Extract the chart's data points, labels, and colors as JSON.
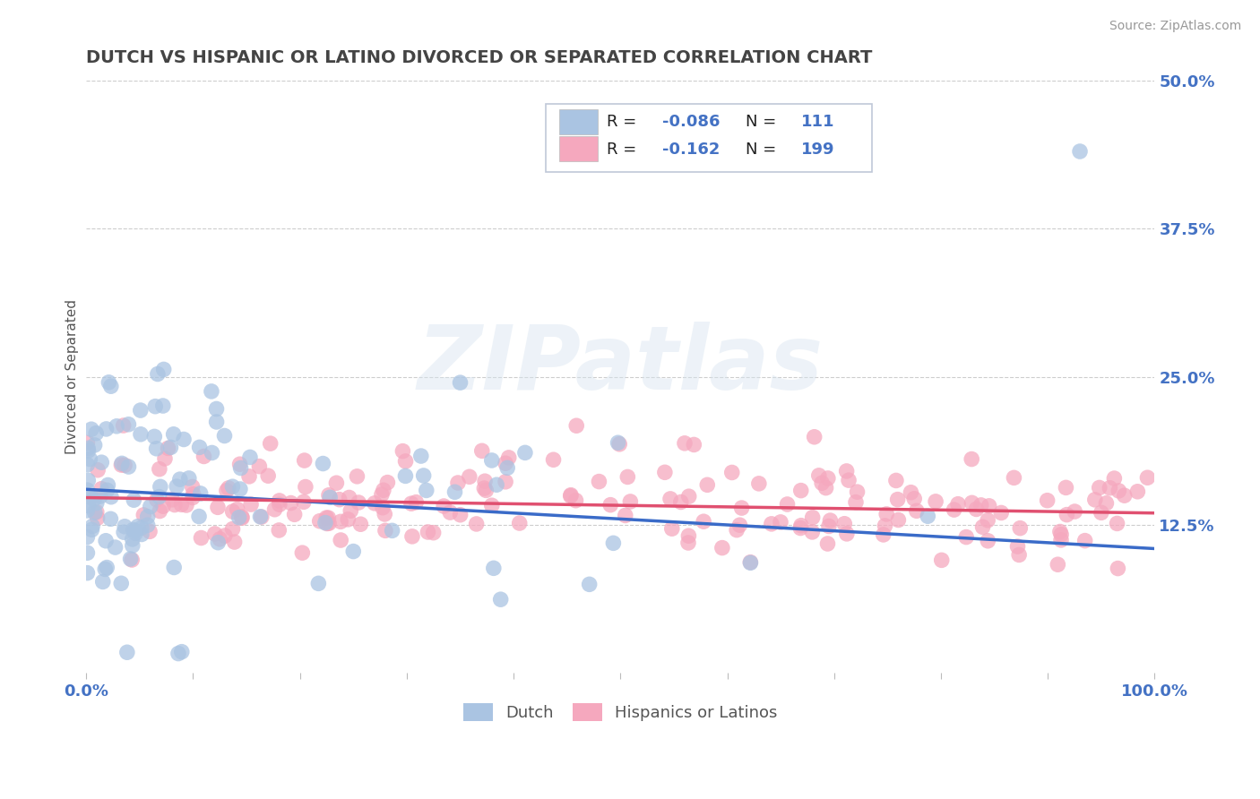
{
  "title": "DUTCH VS HISPANIC OR LATINO DIVORCED OR SEPARATED CORRELATION CHART",
  "source": "Source: ZipAtlas.com",
  "ylabel": "Divorced or Separated",
  "xlim": [
    0,
    1
  ],
  "ylim": [
    0,
    0.5
  ],
  "yticks": [
    0.0,
    0.125,
    0.25,
    0.375,
    0.5
  ],
  "ytick_labels": [
    "",
    "12.5%",
    "25.0%",
    "37.5%",
    "50.0%"
  ],
  "xticks": [
    0.0,
    0.1,
    0.2,
    0.3,
    0.4,
    0.5,
    0.6,
    0.7,
    0.8,
    0.9,
    1.0
  ],
  "dutch_R": -0.086,
  "dutch_N": 111,
  "hispanic_R": -0.162,
  "hispanic_N": 199,
  "dutch_color": "#aac4e2",
  "hispanic_color": "#f5a8be",
  "dutch_line_color": "#3a6bc8",
  "hispanic_line_color": "#e05070",
  "background_color": "#ffffff",
  "grid_color": "#c8c8c8",
  "title_color": "#444444",
  "label_color": "#4472c4",
  "dutch_line_start": 0.155,
  "dutch_line_end": 0.105,
  "hispanic_line_start": 0.148,
  "hispanic_line_end": 0.135
}
